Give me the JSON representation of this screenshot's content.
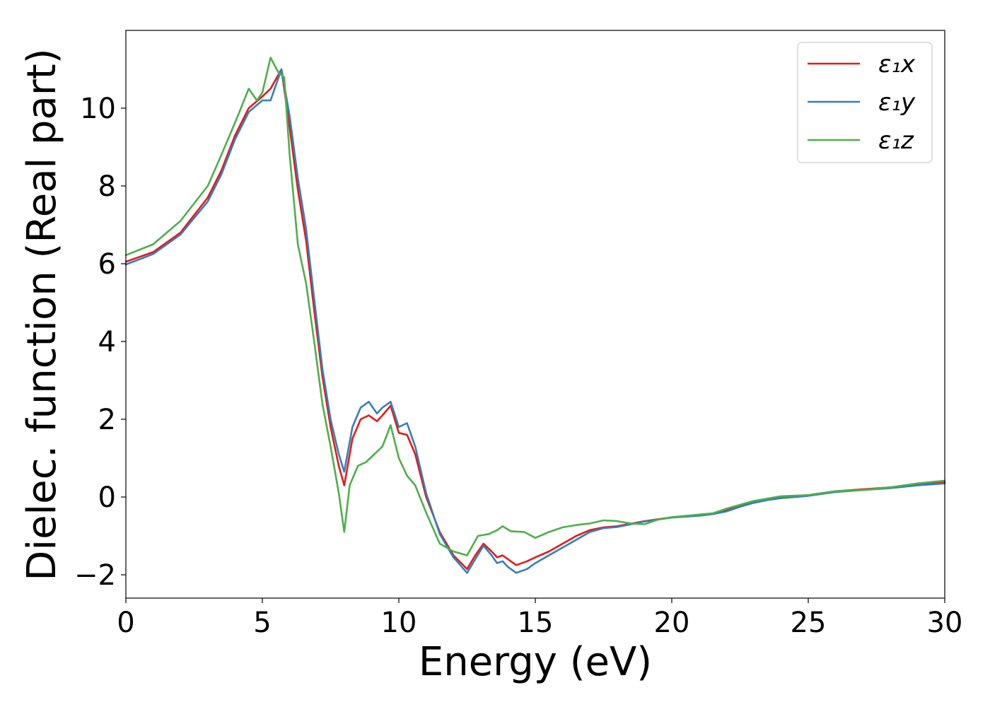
{
  "chart_data": {
    "type": "line",
    "title": "",
    "xlabel": "Energy (eV)",
    "ylabel": "Dielec. function (Real part)",
    "xlim": [
      0,
      30
    ],
    "ylim": [
      -2.6,
      12
    ],
    "xticks": [
      0,
      5,
      10,
      15,
      20,
      25,
      30
    ],
    "xtick_labels": [
      "0",
      "5",
      "10",
      "15",
      "20",
      "25",
      "30"
    ],
    "yticks": [
      -2,
      0,
      2,
      4,
      6,
      8,
      10
    ],
    "ytick_labels": [
      "−2",
      "0",
      "2",
      "4",
      "6",
      "8",
      "10"
    ],
    "grid": false,
    "legend_position": "top-right",
    "series": [
      {
        "name": "ε₁x",
        "color": "#e41a1c",
        "x": [
          0,
          1,
          2,
          3,
          3.5,
          4,
          4.5,
          5,
          5.3,
          5.7,
          6.0,
          6.3,
          6.6,
          6.9,
          7.2,
          7.5,
          7.8,
          8.0,
          8.3,
          8.6,
          8.9,
          9.2,
          9.4,
          9.7,
          10.0,
          10.3,
          10.6,
          11.0,
          11.5,
          12.0,
          12.5,
          12.8,
          13.1,
          13.4,
          13.6,
          13.8,
          14.0,
          14.3,
          14.7,
          15.0,
          15.5,
          16.0,
          16.5,
          17.0,
          17.5,
          18.0,
          19.0,
          20.0,
          21.0,
          21.5,
          22.0,
          22.5,
          23.0,
          23.5,
          24.0,
          25.0,
          26.0,
          27.0,
          28.0,
          29.0,
          30.0
        ],
        "y": [
          6.05,
          6.3,
          6.8,
          7.7,
          8.4,
          9.3,
          10.0,
          10.3,
          10.5,
          11.0,
          9.5,
          7.9,
          6.6,
          4.8,
          3.1,
          1.8,
          0.8,
          0.3,
          1.5,
          2.0,
          2.1,
          1.95,
          2.1,
          2.35,
          1.65,
          1.6,
          1.1,
          0.0,
          -0.9,
          -1.5,
          -1.85,
          -1.5,
          -1.2,
          -1.4,
          -1.55,
          -1.5,
          -1.6,
          -1.75,
          -1.65,
          -1.55,
          -1.4,
          -1.2,
          -1.0,
          -0.85,
          -0.78,
          -0.75,
          -0.62,
          -0.52,
          -0.47,
          -0.43,
          -0.35,
          -0.22,
          -0.12,
          -0.05,
          0.0,
          0.05,
          0.15,
          0.2,
          0.25,
          0.32,
          0.38
        ]
      },
      {
        "name": "ε₁y",
        "color": "#377eb8",
        "x": [
          0,
          1,
          2,
          3,
          3.5,
          4,
          4.5,
          5,
          5.3,
          5.7,
          6.0,
          6.3,
          6.6,
          6.9,
          7.2,
          7.5,
          7.8,
          8.0,
          8.3,
          8.6,
          8.9,
          9.2,
          9.4,
          9.7,
          10.0,
          10.3,
          10.6,
          11.0,
          11.5,
          12.0,
          12.5,
          12.8,
          13.1,
          13.4,
          13.6,
          13.8,
          14.0,
          14.3,
          14.7,
          15.0,
          15.5,
          16.0,
          16.5,
          17.0,
          17.5,
          18.0,
          19.0,
          20.0,
          21.0,
          21.5,
          22.0,
          22.5,
          23.0,
          23.5,
          24.0,
          25.0,
          26.0,
          27.0,
          28.0,
          29.0,
          30.0
        ],
        "y": [
          5.98,
          6.25,
          6.75,
          7.6,
          8.3,
          9.2,
          9.9,
          10.2,
          10.2,
          11.0,
          9.8,
          8.2,
          6.9,
          5.1,
          3.3,
          2.0,
          1.1,
          0.65,
          1.8,
          2.3,
          2.45,
          2.15,
          2.3,
          2.45,
          1.8,
          1.9,
          1.3,
          0.1,
          -0.95,
          -1.55,
          -1.95,
          -1.6,
          -1.25,
          -1.5,
          -1.7,
          -1.65,
          -1.8,
          -1.95,
          -1.85,
          -1.7,
          -1.5,
          -1.3,
          -1.1,
          -0.9,
          -0.8,
          -0.77,
          -0.63,
          -0.53,
          -0.48,
          -0.44,
          -0.37,
          -0.25,
          -0.15,
          -0.08,
          -0.03,
          0.03,
          0.13,
          0.18,
          0.23,
          0.3,
          0.35
        ]
      },
      {
        "name": "ε₁z",
        "color": "#4daf4a",
        "x": [
          0,
          1,
          2,
          3,
          3.5,
          3.8,
          4.1,
          4.5,
          4.8,
          5.0,
          5.3,
          5.6,
          5.8,
          6.0,
          6.3,
          6.6,
          6.9,
          7.2,
          7.5,
          7.8,
          8.0,
          8.2,
          8.5,
          8.8,
          9.1,
          9.4,
          9.7,
          10.0,
          10.3,
          10.6,
          11.0,
          11.5,
          12.0,
          12.5,
          12.9,
          13.3,
          13.6,
          13.8,
          14.1,
          14.6,
          15.0,
          15.5,
          16.0,
          16.5,
          17.0,
          17.5,
          18.0,
          18.5,
          19.0,
          19.5,
          20.0,
          21.0,
          21.5,
          22.0,
          23.0,
          24.0,
          25.0,
          26.0,
          27.0,
          28.0,
          29.0,
          30.0
        ],
        "y": [
          6.22,
          6.5,
          7.1,
          8.0,
          8.8,
          9.3,
          9.8,
          10.5,
          10.2,
          10.4,
          11.3,
          10.9,
          10.8,
          8.8,
          6.5,
          5.5,
          4.0,
          2.4,
          1.3,
          0.1,
          -0.9,
          0.3,
          0.8,
          0.9,
          1.1,
          1.3,
          1.85,
          1.0,
          0.55,
          0.3,
          -0.4,
          -1.2,
          -1.4,
          -1.5,
          -1.0,
          -0.95,
          -0.85,
          -0.75,
          -0.88,
          -0.9,
          -1.05,
          -0.9,
          -0.78,
          -0.72,
          -0.68,
          -0.6,
          -0.62,
          -0.68,
          -0.7,
          -0.58,
          -0.52,
          -0.45,
          -0.42,
          -0.3,
          -0.1,
          0.02,
          0.05,
          0.15,
          0.18,
          0.25,
          0.35,
          0.42
        ]
      }
    ]
  }
}
